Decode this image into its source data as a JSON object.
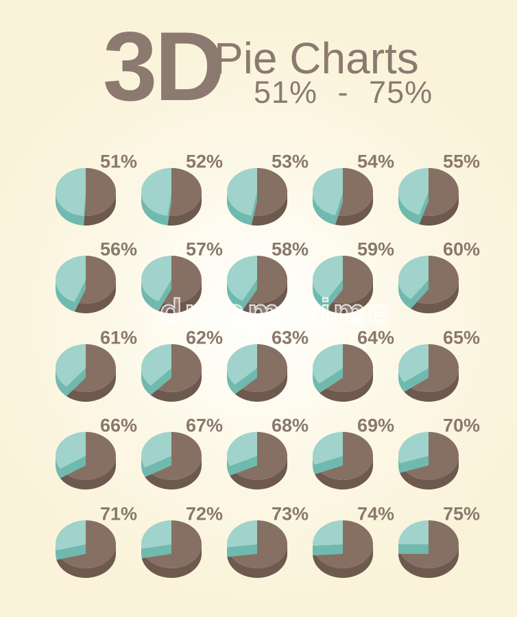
{
  "title": {
    "main": "3D",
    "sub": "Pie Charts",
    "range": "51% - 75%"
  },
  "watermark": {
    "text": "dreamstime"
  },
  "chart_data": {
    "type": "pie",
    "title": "3D Pie Charts",
    "range": "51% - 75%",
    "unit": "%",
    "legend": "none",
    "layout": {
      "columns": 5,
      "rows": 5,
      "style": "3d-extruded-ellipse"
    },
    "colors": {
      "value_top": "#867063",
      "value_side": "#6d594e",
      "remainder_top": "#9fd3cb",
      "remainder_side": "#70b9ae",
      "label_text": "#8a786c",
      "title_text": "#8c7a70",
      "background": "#faf3d9"
    },
    "charts": [
      {
        "label": "51%",
        "value": 51,
        "remainder": 49
      },
      {
        "label": "52%",
        "value": 52,
        "remainder": 48
      },
      {
        "label": "53%",
        "value": 53,
        "remainder": 47
      },
      {
        "label": "54%",
        "value": 54,
        "remainder": 46
      },
      {
        "label": "55%",
        "value": 55,
        "remainder": 45
      },
      {
        "label": "56%",
        "value": 56,
        "remainder": 44
      },
      {
        "label": "57%",
        "value": 57,
        "remainder": 43
      },
      {
        "label": "58%",
        "value": 58,
        "remainder": 42
      },
      {
        "label": "59%",
        "value": 59,
        "remainder": 41
      },
      {
        "label": "60%",
        "value": 60,
        "remainder": 40
      },
      {
        "label": "61%",
        "value": 61,
        "remainder": 39
      },
      {
        "label": "62%",
        "value": 62,
        "remainder": 38
      },
      {
        "label": "63%",
        "value": 63,
        "remainder": 37
      },
      {
        "label": "64%",
        "value": 64,
        "remainder": 36
      },
      {
        "label": "65%",
        "value": 65,
        "remainder": 35
      },
      {
        "label": "66%",
        "value": 66,
        "remainder": 34
      },
      {
        "label": "67%",
        "value": 67,
        "remainder": 33
      },
      {
        "label": "68%",
        "value": 68,
        "remainder": 32
      },
      {
        "label": "69%",
        "value": 69,
        "remainder": 31
      },
      {
        "label": "70%",
        "value": 70,
        "remainder": 30
      },
      {
        "label": "71%",
        "value": 71,
        "remainder": 29
      },
      {
        "label": "72%",
        "value": 72,
        "remainder": 28
      },
      {
        "label": "73%",
        "value": 73,
        "remainder": 27
      },
      {
        "label": "74%",
        "value": 74,
        "remainder": 26
      },
      {
        "label": "75%",
        "value": 75,
        "remainder": 25
      }
    ]
  }
}
